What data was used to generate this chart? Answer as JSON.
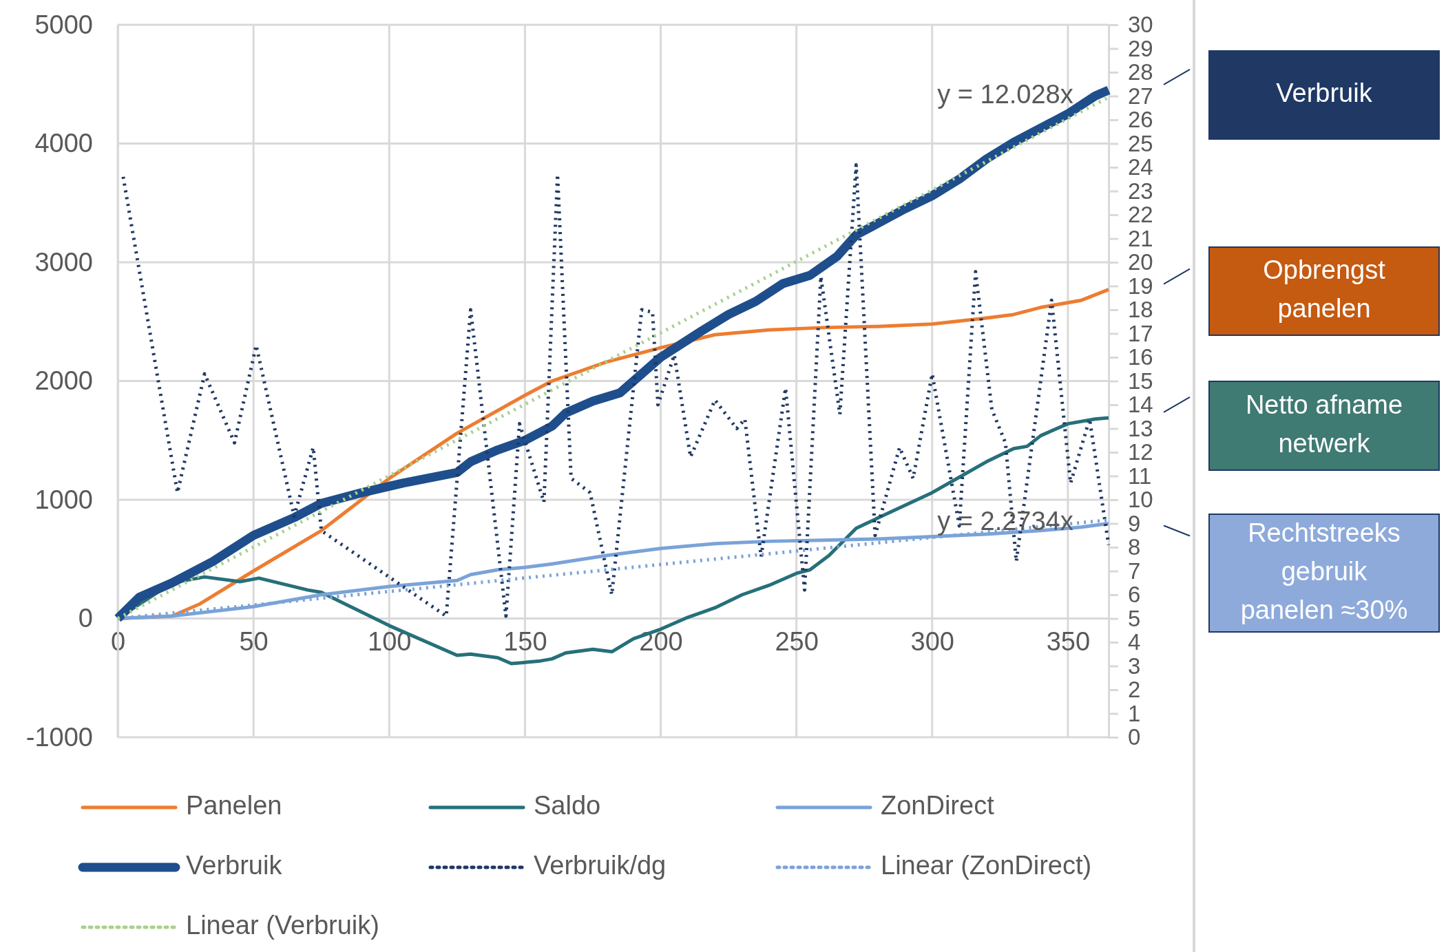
{
  "chart_data": {
    "type": "line",
    "xlim": [
      0,
      365
    ],
    "xticks": [
      0,
      50,
      100,
      150,
      200,
      250,
      300,
      350
    ],
    "ylim": [
      -1000,
      5000
    ],
    "yticks": [
      -1000,
      0,
      1000,
      2000,
      3000,
      4000,
      5000
    ],
    "y2lim": [
      0,
      30
    ],
    "y2ticks": [
      0,
      1,
      2,
      3,
      4,
      5,
      6,
      7,
      8,
      9,
      10,
      11,
      12,
      13,
      14,
      15,
      16,
      17,
      18,
      19,
      20,
      21,
      22,
      23,
      24,
      25,
      26,
      27,
      28,
      29,
      30
    ],
    "grid": true,
    "legend": "bottom",
    "marker": "none",
    "series": [
      {
        "name": "Panelen",
        "color": "#ed7d31",
        "line_style": "solid",
        "x": [
          0,
          20,
          30,
          50,
          75,
          100,
          125,
          150,
          160,
          180,
          200,
          220,
          240,
          260,
          280,
          300,
          320,
          330,
          340,
          355,
          365
        ],
        "values": [
          0,
          20,
          120,
          400,
          740,
          1180,
          1560,
          1880,
          2000,
          2160,
          2280,
          2390,
          2430,
          2450,
          2460,
          2480,
          2530,
          2560,
          2620,
          2680,
          2770
        ]
      },
      {
        "name": "Saldo",
        "color": "#26707a",
        "line_style": "solid",
        "x": [
          0,
          20,
          32,
          45,
          52,
          70,
          75,
          100,
          125,
          130,
          140,
          145,
          155,
          160,
          165,
          175,
          182,
          190,
          200,
          210,
          220,
          230,
          240,
          250,
          255,
          262,
          272,
          285,
          300,
          310,
          320,
          330,
          335,
          340,
          350,
          360,
          365
        ],
        "values": [
          0,
          300,
          350,
          310,
          340,
          240,
          220,
          -60,
          -310,
          -300,
          -330,
          -380,
          -360,
          -340,
          -290,
          -260,
          -280,
          -170,
          -90,
          10,
          90,
          200,
          280,
          380,
          410,
          530,
          760,
          900,
          1060,
          1190,
          1320,
          1430,
          1450,
          1540,
          1640,
          1680,
          1690
        ]
      },
      {
        "name": "ZonDirect",
        "color": "#7aa3d8",
        "line_style": "solid",
        "x": [
          0,
          20,
          50,
          75,
          100,
          125,
          130,
          140,
          150,
          160,
          180,
          200,
          220,
          240,
          260,
          280,
          300,
          320,
          340,
          355,
          365
        ],
        "values": [
          0,
          20,
          100,
          200,
          270,
          320,
          370,
          410,
          430,
          460,
          530,
          590,
          630,
          650,
          660,
          670,
          690,
          710,
          740,
          770,
          800
        ]
      },
      {
        "name": "Verbruik",
        "color": "#1f4e8c",
        "line_style": "solid",
        "x": [
          0,
          8,
          20,
          35,
          50,
          65,
          75,
          90,
          105,
          125,
          130,
          140,
          150,
          160,
          165,
          175,
          185,
          200,
          215,
          225,
          235,
          245,
          255,
          265,
          272,
          290,
          300,
          310,
          320,
          330,
          340,
          350,
          360,
          365
        ],
        "values": [
          0,
          180,
          300,
          480,
          700,
          850,
          970,
          1060,
          1140,
          1230,
          1320,
          1420,
          1500,
          1620,
          1730,
          1830,
          1900,
          2200,
          2420,
          2560,
          2670,
          2820,
          2890,
          3050,
          3230,
          3450,
          3560,
          3700,
          3870,
          4010,
          4130,
          4250,
          4400,
          4450
        ]
      },
      {
        "name": "Verbruik/dg",
        "color": "#1f3864",
        "line_style": "dotted",
        "axis": "y2",
        "x": [
          2,
          22,
          32,
          43,
          51,
          65,
          72,
          75,
          121,
          130,
          143,
          148,
          157,
          162,
          167,
          174,
          182,
          193,
          197,
          199,
          205,
          211,
          220,
          228,
          231,
          237,
          246,
          253,
          259,
          266,
          272,
          279,
          288,
          293,
          300,
          310,
          316,
          322,
          327,
          331,
          344,
          351,
          358,
          365
        ],
        "values": [
          23.6,
          10.3,
          15.3,
          12.4,
          16.5,
          9.3,
          12.2,
          8.7,
          5.1,
          18.0,
          5.1,
          13.2,
          9.9,
          23.7,
          10.9,
          10.3,
          6.0,
          18.0,
          17.9,
          14.0,
          16.1,
          11.8,
          14.2,
          13.0,
          13.4,
          7.6,
          14.7,
          6.2,
          19.4,
          13.6,
          24.1,
          8.5,
          12.2,
          10.9,
          15.3,
          8.9,
          19.6,
          13.8,
          12.4,
          7.4,
          18.4,
          10.7,
          13.4,
          8.1
        ]
      },
      {
        "name": "Linear (ZonDirect)",
        "color": "#7aa3d8",
        "line_style": "dotted",
        "x": [
          0,
          365
        ],
        "values": [
          0,
          830
        ]
      },
      {
        "name": "Linear (Verbruik)",
        "color": "#a9d18e",
        "line_style": "dotted",
        "x": [
          0,
          365
        ],
        "values": [
          0,
          4390
        ]
      }
    ],
    "annotations": [
      "y = 12.028x",
      "y = 2.2734x",
      "Verbruik",
      "Opbrengst panelen",
      "Netto afname netwerk",
      "Rechtstreeks gebruik panelen ≈30%"
    ]
  }
}
